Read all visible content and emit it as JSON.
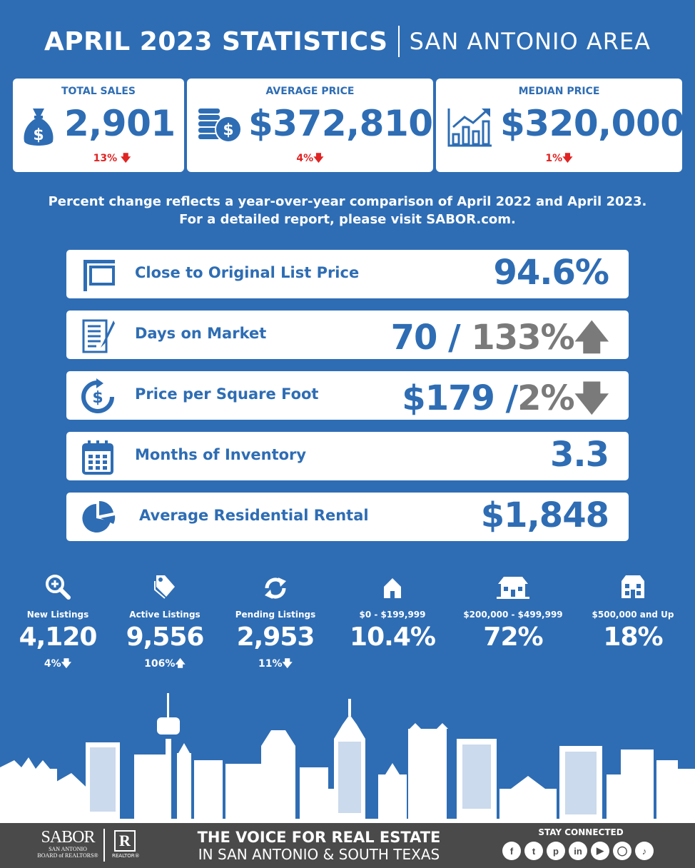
{
  "header": {
    "title": "APRIL 2023 STATISTICS",
    "subtitle": "SAN ANTONIO AREA"
  },
  "top_cards": [
    {
      "label": "TOTAL SALES",
      "value": "2,901",
      "change": "13%",
      "direction": "down",
      "icon": "money-bag-icon"
    },
    {
      "label": "AVERAGE PRICE",
      "value": "$372,810",
      "change": "4%",
      "direction": "down",
      "icon": "coins-icon"
    },
    {
      "label": "MEDIAN PRICE",
      "value": "$320,000",
      "change": "1%",
      "direction": "down",
      "icon": "growth-chart-icon"
    }
  ],
  "note": {
    "line1": "Percent change reflects a year-over-year comparison of April 2022 and April 2023.",
    "line2": "For a detailed report, please visit SABOR.com."
  },
  "rows": [
    {
      "label": "Close to Original List Price",
      "value": "94.6%",
      "icon": "sign-icon"
    },
    {
      "label": "Days on Market",
      "value": "70",
      "change": "133%",
      "direction": "up",
      "icon": "checklist-icon"
    },
    {
      "label": "Price per Square Foot",
      "value": "$179",
      "change": "2%",
      "direction": "down",
      "icon": "dollar-cycle-icon"
    },
    {
      "label": "Months of Inventory",
      "value": "3.3",
      "icon": "calendar-icon"
    },
    {
      "label": "Average Residential Rental",
      "value": "$1,848",
      "icon": "pie-chart-icon"
    }
  ],
  "bottom_stats": [
    {
      "label": "New Listings",
      "value": "4,120",
      "change": "4%",
      "direction": "down",
      "icon": "magnify-plus-icon"
    },
    {
      "label": "Active Listings",
      "value": "9,556",
      "change": "106%",
      "direction": "up",
      "icon": "price-tag-icon"
    },
    {
      "label": "Pending Listings",
      "value": "2,953",
      "change": "11%",
      "direction": "down",
      "icon": "refresh-icon"
    },
    {
      "label": "$0 - $199,999",
      "value": "10.4%",
      "change": "",
      "icon": "small-house-icon"
    },
    {
      "label": "$200,000 - $499,999",
      "value": "72%",
      "change": "",
      "icon": "medium-house-icon"
    },
    {
      "label": "$500,000 and Up",
      "value": "18%",
      "change": "",
      "icon": "large-house-icon"
    }
  ],
  "footer": {
    "logo": "SABOR",
    "logo_sub1": "SAN ANTONIO",
    "logo_sub2": "BOARD of REALTORS®",
    "realtor_mark": "R",
    "realtor_text": "REALTOR®",
    "slogan1": "THE VOICE FOR REAL ESTATE",
    "slogan2": "IN SAN ANTONIO & SOUTH TEXAS",
    "stay_connected": "STAY CONNECTED",
    "socials": [
      "facebook-icon",
      "twitter-icon",
      "pinterest-icon",
      "linkedin-icon",
      "youtube-icon",
      "instagram-icon",
      "tiktok-icon"
    ]
  },
  "colors": {
    "background": "#2e6db4",
    "card": "#ffffff",
    "down": "#e02424",
    "muted": "#7a7a7a",
    "footer": "#4a4a4a"
  }
}
